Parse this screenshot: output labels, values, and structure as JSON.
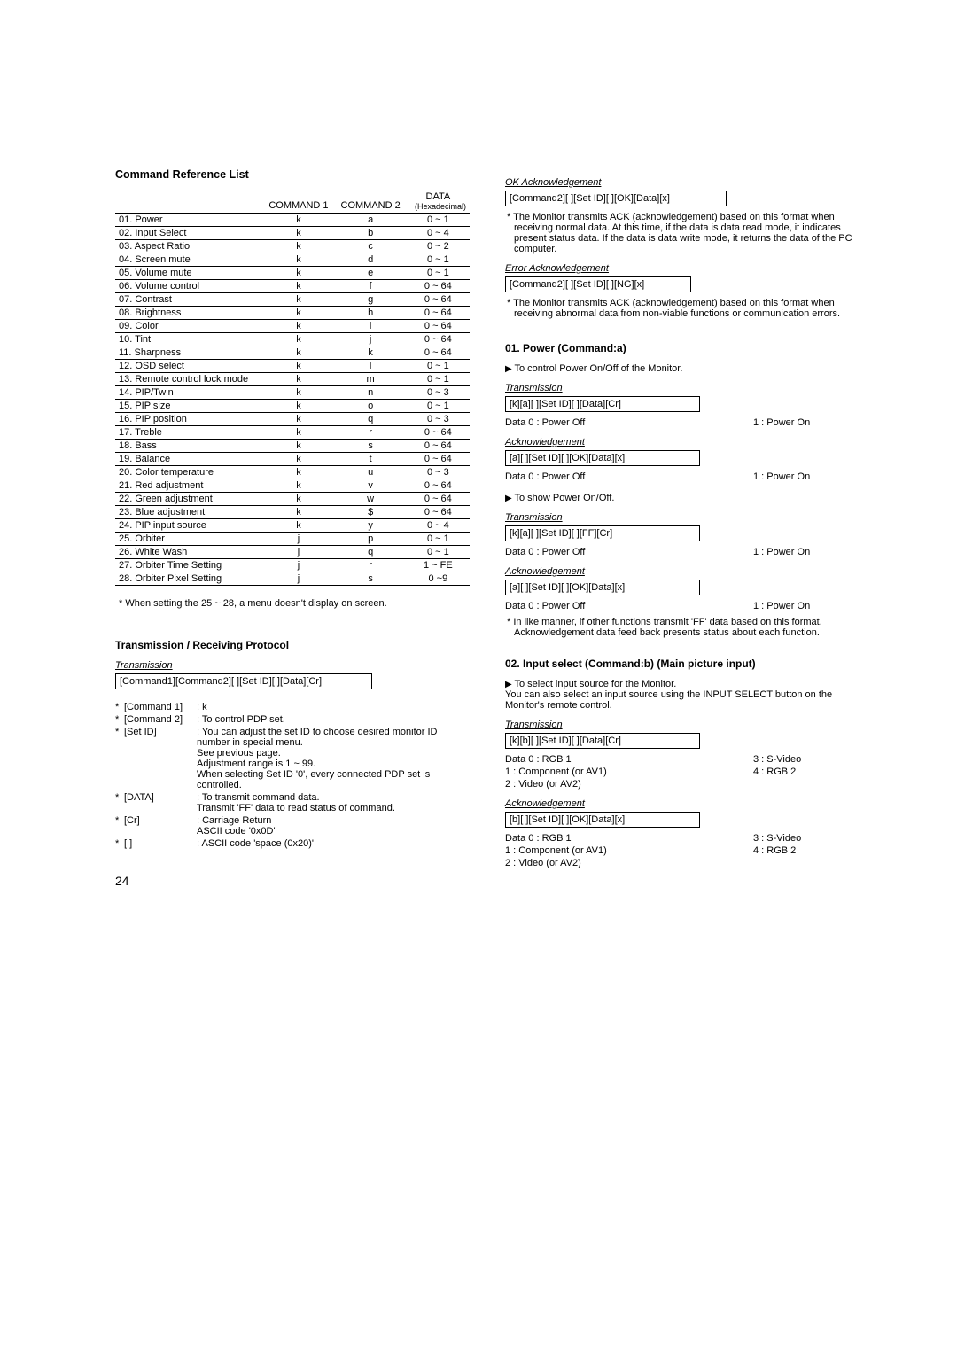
{
  "left": {
    "heading": "Command Reference List",
    "table_headers": {
      "name": "",
      "c1": "COMMAND 1",
      "c2": "COMMAND 2",
      "data": "DATA",
      "hex": "(Hexadecimal)"
    },
    "rows": [
      {
        "name": "01. Power",
        "c1": "k",
        "c2": "a",
        "d": "0 ~ 1"
      },
      {
        "name": "02. Input Select",
        "c1": "k",
        "c2": "b",
        "d": "0 ~ 4"
      },
      {
        "name": "03. Aspect Ratio",
        "c1": "k",
        "c2": "c",
        "d": "0 ~ 2"
      },
      {
        "name": "04. Screen mute",
        "c1": "k",
        "c2": "d",
        "d": "0 ~ 1"
      },
      {
        "name": "05. Volume mute",
        "c1": "k",
        "c2": "e",
        "d": "0 ~ 1"
      },
      {
        "name": "06. Volume control",
        "c1": "k",
        "c2": "f",
        "d": "0 ~ 64"
      },
      {
        "name": "07. Contrast",
        "c1": "k",
        "c2": "g",
        "d": "0 ~ 64"
      },
      {
        "name": "08. Brightness",
        "c1": "k",
        "c2": "h",
        "d": "0 ~ 64"
      },
      {
        "name": "09. Color",
        "c1": "k",
        "c2": "i",
        "d": "0 ~ 64"
      },
      {
        "name": "10. Tint",
        "c1": "k",
        "c2": "j",
        "d": "0 ~ 64"
      },
      {
        "name": "11. Sharpness",
        "c1": "k",
        "c2": "k",
        "d": "0 ~ 64"
      },
      {
        "name": "12. OSD select",
        "c1": "k",
        "c2": "l",
        "d": "0 ~ 1"
      },
      {
        "name": "13. Remote control lock mode",
        "c1": "k",
        "c2": "m",
        "d": "0 ~ 1"
      },
      {
        "name": "14. PIP/Twin",
        "c1": "k",
        "c2": "n",
        "d": "0 ~ 3"
      },
      {
        "name": "15. PIP size",
        "c1": "k",
        "c2": "o",
        "d": "0 ~ 1"
      },
      {
        "name": "16. PIP position",
        "c1": "k",
        "c2": "q",
        "d": "0 ~ 3"
      },
      {
        "name": "17. Treble",
        "c1": "k",
        "c2": "r",
        "d": "0 ~ 64"
      },
      {
        "name": "18. Bass",
        "c1": "k",
        "c2": "s",
        "d": "0 ~ 64"
      },
      {
        "name": "19. Balance",
        "c1": "k",
        "c2": "t",
        "d": "0 ~ 64"
      },
      {
        "name": "20. Color temperature",
        "c1": "k",
        "c2": "u",
        "d": "0 ~ 3"
      },
      {
        "name": "21. Red adjustment",
        "c1": "k",
        "c2": "v",
        "d": "0 ~ 64"
      },
      {
        "name": "22. Green adjustment",
        "c1": "k",
        "c2": "w",
        "d": "0 ~ 64"
      },
      {
        "name": "23. Blue adjustment",
        "c1": "k",
        "c2": "$",
        "d": "0 ~ 64"
      },
      {
        "name": "24. PIP input source",
        "c1": "k",
        "c2": "y",
        "d": "0 ~ 4"
      },
      {
        "name": "25. Orbiter",
        "c1": "j",
        "c2": "p",
        "d": "0 ~ 1"
      },
      {
        "name": "26. White Wash",
        "c1": "j",
        "c2": "q",
        "d": "0 ~ 1"
      },
      {
        "name": "27. Orbiter Time Setting",
        "c1": "j",
        "c2": "r",
        "d": "1 ~ FE"
      },
      {
        "name": "28. Orbiter Pixel Setting",
        "c1": "j",
        "c2": "s",
        "d": "0 ~9"
      }
    ],
    "note": "When setting the 25 ~ 28, a menu doesn't display on screen.",
    "protocol_heading": "Transmission / Receiving  Protocol",
    "transmission_label": "Transmission",
    "transmission_box": "[Command1][Command2][  ][Set ID][  ][Data][Cr]",
    "bullets": [
      {
        "k": "[Command 1]",
        "v": ": k"
      },
      {
        "k": "[Command 2]",
        "v": ": To control PDP set."
      },
      {
        "k": "[Set ID]",
        "v": ": You can adjust the set ID to choose desired monitor ID number in special menu.\nSee previous page.\nAdjustment range is 1 ~ 99.\nWhen selecting Set ID '0', every connected PDP set is controlled."
      },
      {
        "k": "[DATA]",
        "v": ": To transmit command data.\nTransmit 'FF' data to read status of command."
      },
      {
        "k": "[Cr]",
        "v": ": Carriage Return\nASCII code '0x0D'"
      },
      {
        "k": "[   ]",
        "v": ": ASCII code 'space (0x20)'"
      }
    ]
  },
  "right": {
    "ok_label": "OK Acknowledgement",
    "ok_box": "[Command2][  ][Set ID][  ][OK][Data][x]",
    "ok_text": "* The Monitor transmits ACK (acknowledgement) based on this format when receiving normal data. At this time, if the data is data read mode, it indicates present status data. If the data is data write mode, it returns the data of the PC computer.",
    "err_label": "Error Acknowledgement",
    "err_box": "[Command2][  ][Set ID][  ][NG][x]",
    "err_text": "* The Monitor transmits ACK (acknowledgement) based on this format when receiving abnormal data from non-viable functions or communication errors.",
    "s01": {
      "heading": "01. Power (Command:a)",
      "desc": "To control Power On/Off of the Monitor.",
      "t_label": "Transmission",
      "t_box": "[k][a][  ][Set ID][  ][Data][Cr]",
      "t_data_l": "Data   0  : Power Off",
      "t_data_r": "1       : Power On",
      "a_label": "Acknowledgement",
      "a_box": "[a][  ][Set ID][  ][OK][Data][x]",
      "a_data_l": "Data   0  : Power Off",
      "a_data_r": "1       : Power On",
      "desc2": "To show Power On/Off.",
      "t2_label": "Transmission",
      "t2_box": "[k][a][  ][Set ID][  ][FF][Cr]",
      "t2_data_l": "Data   0  : Power Off",
      "t2_data_r": "1  : Power On",
      "a2_label": "Acknowledgement",
      "a2_box": "[a][  ][Set ID][  ][OK][Data][x]",
      "a2_data_l": "Data   0  : Power Off",
      "a2_data_r": "1  : Power On",
      "note": "* In like manner, if other functions transmit 'FF' data based on this format, Acknowledgement data feed back presents status about each function."
    },
    "s02": {
      "heading": "02. Input select (Command:b) (Main picture input)",
      "desc": "To select input source for the Monitor.\nYou can also select an input source using the INPUT SELECT button on the Monitor's remote control.",
      "t_label": "Transmission",
      "t_box": "[k][b][  ][Set ID][  ][Data][Cr]",
      "d0l": "Data   0   : RGB 1",
      "d0r": "3  : S-Video",
      "d1l": "          1   : Component (or AV1)",
      "d1r": "4  : RGB 2",
      "d2l": "          2   : Video (or AV2)",
      "a_label": "Acknowledgement",
      "a_box": "[b][  ][Set ID][  ][OK][Data][x]",
      "ad0l": "Data   0   : RGB 1",
      "ad0r": "3  : S-Video",
      "ad1l": "          1   : Component (or AV1)",
      "ad1r": "4  : RGB 2",
      "ad2l": "          2   : Video (or AV2)"
    }
  },
  "page_number": "24"
}
